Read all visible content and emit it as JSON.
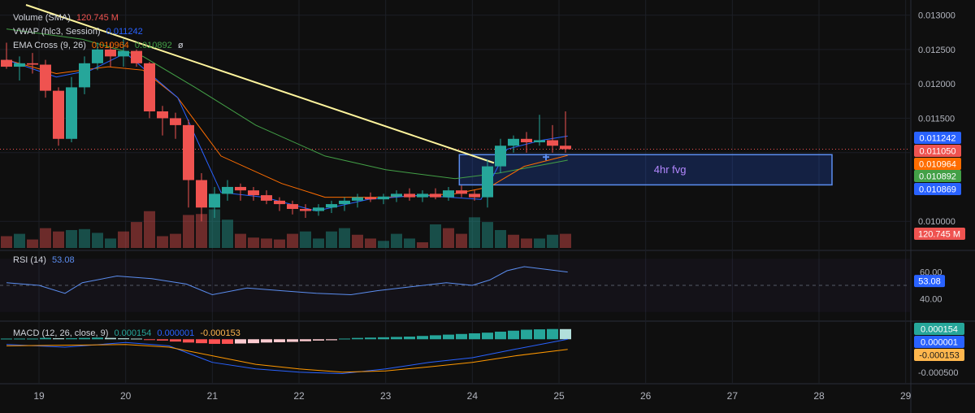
{
  "legend": {
    "volume": {
      "label": "Volume (SMA)",
      "value": "120.745 M"
    },
    "vwap": {
      "label": "VWAP (hlc3, Session)",
      "value": "0.011242"
    },
    "ema": {
      "label": "EMA Cross (9, 26)",
      "value1": "0.010964",
      "value2": "0.010892"
    },
    "rsi": {
      "label": "RSI (14)",
      "value": "53.08"
    },
    "macd": {
      "label": "MACD (12, 26, close, 9)",
      "v1": "0.000154",
      "v2": "0.000001",
      "v3": "-0.000153"
    }
  },
  "annotation": {
    "text": "4hr fvg"
  },
  "colors": {
    "up": "#26a69a",
    "down": "#ef5350",
    "vwap": "#2962ff",
    "ema_fast": "#ff6d00",
    "ema_slow": "#43a047",
    "trend": "#fff59d",
    "rsi": "#5b8def",
    "macd_line": "#2962ff",
    "signal": "#ff9800"
  },
  "price_tags": [
    {
      "value": "0.011242",
      "color": "#2962ff"
    },
    {
      "value": "0.011050",
      "color": "#ef5350"
    },
    {
      "value": "0.010964",
      "color": "#ff6d00"
    },
    {
      "value": "0.010892",
      "color": "#43a047"
    },
    {
      "value": "0.010869",
      "color": "#2962ff"
    }
  ],
  "volume_tag": {
    "value": "120.745 M",
    "color": "#ef5350"
  },
  "rsi_tag": {
    "value": "53.08"
  },
  "macd_tags": [
    {
      "value": "0.000154",
      "color": "#26a69a"
    },
    {
      "value": "0.000001",
      "color": "#2962ff"
    },
    {
      "value": "-0.000153",
      "color": "#ffb74d"
    }
  ],
  "chart_data": {
    "type": "candlestick",
    "price_axis": {
      "ticks": [
        "0.013000",
        "0.012500",
        "0.012000",
        "0.011500",
        "0.011000",
        "0.010000"
      ],
      "range": [
        0.0096,
        0.01315
      ]
    },
    "rsi_axis": {
      "ticks": [
        "60.00",
        "40.00"
      ],
      "range": [
        25,
        75
      ]
    },
    "macd_axis": {
      "ticks": [
        "-0.000500"
      ],
      "range": [
        -0.00065,
        0.00025
      ]
    },
    "x_ticks": [
      "19",
      "20",
      "21",
      "22",
      "23",
      "24",
      "25",
      "26",
      "27",
      "28",
      "29"
    ],
    "x_tick_days": [
      19,
      20,
      21,
      22,
      23,
      24,
      25,
      26,
      27,
      28,
      29
    ],
    "x_range": [
      18.55,
      29.05
    ],
    "candles": [
      [
        18.625,
        0.01235,
        0.0126,
        0.01222,
        0.01225
      ],
      [
        18.775,
        0.01225,
        0.0124,
        0.01205,
        0.0123
      ],
      [
        18.925,
        0.0123,
        0.01245,
        0.01215,
        0.01228
      ],
      [
        19.075,
        0.01228,
        0.01235,
        0.0118,
        0.0119
      ],
      [
        19.225,
        0.0119,
        0.01195,
        0.0111,
        0.0112
      ],
      [
        19.375,
        0.0112,
        0.0121,
        0.01115,
        0.01195
      ],
      [
        19.525,
        0.01195,
        0.0124,
        0.01185,
        0.0123
      ],
      [
        19.675,
        0.0123,
        0.0126,
        0.0122,
        0.0125
      ],
      [
        19.825,
        0.0125,
        0.0126,
        0.01225,
        0.0124
      ],
      [
        19.975,
        0.0124,
        0.01265,
        0.01225,
        0.01248
      ],
      [
        20.125,
        0.01248,
        0.0125,
        0.01225,
        0.0123
      ],
      [
        20.275,
        0.0123,
        0.01232,
        0.0115,
        0.0116
      ],
      [
        20.425,
        0.0116,
        0.01168,
        0.01125,
        0.0115
      ],
      [
        20.575,
        0.0115,
        0.01158,
        0.0112,
        0.0114
      ],
      [
        20.725,
        0.0114,
        0.01148,
        0.0102,
        0.0106
      ],
      [
        20.875,
        0.0106,
        0.0107,
        0.01,
        0.0102
      ],
      [
        21.025,
        0.0102,
        0.0105,
        0.01005,
        0.0104
      ],
      [
        21.175,
        0.0104,
        0.0106,
        0.0103,
        0.0105
      ],
      [
        21.325,
        0.0105,
        0.01055,
        0.0103,
        0.01045
      ],
      [
        21.475,
        0.01045,
        0.0105,
        0.0103,
        0.01038
      ],
      [
        21.625,
        0.01038,
        0.01045,
        0.01025,
        0.0103
      ],
      [
        21.775,
        0.0103,
        0.01035,
        0.01015,
        0.01025
      ],
      [
        21.925,
        0.01025,
        0.0103,
        0.0101,
        0.01018
      ],
      [
        22.075,
        0.01018,
        0.01025,
        0.01005,
        0.01015
      ],
      [
        22.225,
        0.01015,
        0.01025,
        0.01008,
        0.0102
      ],
      [
        22.375,
        0.0102,
        0.0103,
        0.01012,
        0.01025
      ],
      [
        22.525,
        0.01025,
        0.01035,
        0.01015,
        0.0103
      ],
      [
        22.675,
        0.0103,
        0.0104,
        0.0102,
        0.01035
      ],
      [
        22.825,
        0.01035,
        0.01042,
        0.01028,
        0.01032
      ],
      [
        22.975,
        0.01032,
        0.0104,
        0.01025,
        0.01036
      ],
      [
        23.125,
        0.01036,
        0.01045,
        0.01028,
        0.0104
      ],
      [
        23.275,
        0.0104,
        0.01048,
        0.0103,
        0.01035
      ],
      [
        23.425,
        0.01035,
        0.01045,
        0.01028,
        0.0104
      ],
      [
        23.575,
        0.0104,
        0.01048,
        0.01032,
        0.01035
      ],
      [
        23.725,
        0.01035,
        0.0105,
        0.0103,
        0.01045
      ],
      [
        23.875,
        0.01045,
        0.01052,
        0.01035,
        0.0104
      ],
      [
        24.025,
        0.0104,
        0.01045,
        0.0103,
        0.01035
      ],
      [
        24.175,
        0.01035,
        0.0109,
        0.0102,
        0.0108
      ],
      [
        24.325,
        0.0108,
        0.0112,
        0.0107,
        0.0111
      ],
      [
        24.475,
        0.0111,
        0.01125,
        0.011,
        0.0112
      ],
      [
        24.625,
        0.0112,
        0.0113,
        0.011,
        0.01115
      ],
      [
        24.775,
        0.01115,
        0.01155,
        0.0111,
        0.01118
      ],
      [
        24.925,
        0.01118,
        0.0114,
        0.011,
        0.0111
      ],
      [
        25.075,
        0.0111,
        0.0116,
        0.011,
        0.01105
      ]
    ],
    "volume": [
      [
        18.625,
        0.25,
        "down"
      ],
      [
        18.775,
        0.3,
        "up"
      ],
      [
        18.925,
        0.18,
        "down"
      ],
      [
        19.075,
        0.42,
        "down"
      ],
      [
        19.225,
        0.35,
        "down"
      ],
      [
        19.375,
        0.38,
        "up"
      ],
      [
        19.525,
        0.4,
        "up"
      ],
      [
        19.675,
        0.32,
        "up"
      ],
      [
        19.825,
        0.2,
        "up"
      ],
      [
        19.975,
        0.35,
        "down"
      ],
      [
        20.125,
        0.55,
        "down"
      ],
      [
        20.275,
        0.78,
        "down"
      ],
      [
        20.425,
        0.25,
        "down"
      ],
      [
        20.575,
        0.3,
        "down"
      ],
      [
        20.725,
        0.7,
        "down"
      ],
      [
        20.875,
        0.72,
        "down"
      ],
      [
        21.025,
        0.82,
        "up"
      ],
      [
        21.175,
        0.6,
        "up"
      ],
      [
        21.325,
        0.3,
        "down"
      ],
      [
        21.475,
        0.22,
        "down"
      ],
      [
        21.625,
        0.2,
        "down"
      ],
      [
        21.775,
        0.18,
        "down"
      ],
      [
        21.925,
        0.3,
        "down"
      ],
      [
        22.075,
        0.35,
        "up"
      ],
      [
        22.225,
        0.2,
        "up"
      ],
      [
        22.375,
        0.35,
        "up"
      ],
      [
        22.525,
        0.42,
        "up"
      ],
      [
        22.675,
        0.28,
        "down"
      ],
      [
        22.825,
        0.2,
        "down"
      ],
      [
        22.975,
        0.15,
        "up"
      ],
      [
        23.125,
        0.3,
        "up"
      ],
      [
        23.275,
        0.2,
        "up"
      ],
      [
        23.425,
        0.12,
        "down"
      ],
      [
        23.575,
        0.5,
        "up"
      ],
      [
        23.725,
        0.42,
        "down"
      ],
      [
        23.875,
        0.3,
        "down"
      ],
      [
        24.025,
        0.65,
        "up"
      ],
      [
        24.175,
        0.55,
        "up"
      ],
      [
        24.325,
        0.38,
        "up"
      ],
      [
        24.475,
        0.28,
        "down"
      ],
      [
        24.625,
        0.2,
        "down"
      ],
      [
        24.775,
        0.2,
        "up"
      ],
      [
        24.925,
        0.28,
        "up"
      ],
      [
        25.075,
        0.3,
        "down"
      ]
    ],
    "vwap_line": [
      [
        18.625,
        0.01235
      ],
      [
        19.2,
        0.0121
      ],
      [
        19.6,
        0.0122
      ],
      [
        20.0,
        0.01245
      ],
      [
        20.6,
        0.0118
      ],
      [
        21.1,
        0.01042
      ],
      [
        21.6,
        0.01035
      ],
      [
        22.2,
        0.01015
      ],
      [
        22.8,
        0.01032
      ],
      [
        23.4,
        0.01038
      ],
      [
        24.1,
        0.01032
      ],
      [
        24.4,
        0.01105
      ],
      [
        24.8,
        0.01118
      ],
      [
        25.1,
        0.01124
      ]
    ],
    "ema_fast": [
      [
        18.625,
        0.01235
      ],
      [
        19.2,
        0.01215
      ],
      [
        19.8,
        0.01225
      ],
      [
        20.2,
        0.0122
      ],
      [
        20.6,
        0.0118
      ],
      [
        21.1,
        0.01095
      ],
      [
        21.8,
        0.01055
      ],
      [
        22.3,
        0.01035
      ],
      [
        23.0,
        0.01035
      ],
      [
        23.8,
        0.0104
      ],
      [
        24.2,
        0.0105
      ],
      [
        24.6,
        0.0108
      ],
      [
        25.1,
        0.01096
      ]
    ],
    "ema_slow": [
      [
        18.625,
        0.0128
      ],
      [
        19.5,
        0.01265
      ],
      [
        20.2,
        0.0124
      ],
      [
        20.8,
        0.01195
      ],
      [
        21.5,
        0.0114
      ],
      [
        22.3,
        0.01095
      ],
      [
        23.0,
        0.01075
      ],
      [
        23.8,
        0.01062
      ],
      [
        24.3,
        0.0107
      ],
      [
        25.1,
        0.01089
      ]
    ],
    "trendline": [
      [
        18.85,
        0.01315
      ],
      [
        24.25,
        0.01085
      ]
    ],
    "fvg_zone": {
      "x1": 23.85,
      "x2": 28.15,
      "y_top": 0.01097,
      "y_bottom": 0.01053
    },
    "rsi": [
      [
        18.625,
        52
      ],
      [
        19.0,
        50
      ],
      [
        19.3,
        44
      ],
      [
        19.5,
        52
      ],
      [
        19.9,
        57
      ],
      [
        20.3,
        55
      ],
      [
        20.7,
        51
      ],
      [
        21.0,
        43
      ],
      [
        21.4,
        48
      ],
      [
        21.8,
        46
      ],
      [
        22.2,
        44
      ],
      [
        22.6,
        43
      ],
      [
        22.9,
        46
      ],
      [
        23.3,
        49
      ],
      [
        23.7,
        52
      ],
      [
        24.0,
        50
      ],
      [
        24.2,
        54
      ],
      [
        24.4,
        61
      ],
      [
        24.6,
        64
      ],
      [
        25.1,
        60
      ]
    ],
    "macd_hist": [
      1e-05,
      1e-05,
      1e-05,
      2e-05,
      1.5e-05,
      1.5e-05,
      2e-05,
      2.5e-05,
      2e-05,
      1.5e-05,
      1e-05,
      -1e-05,
      -2e-05,
      -3.5e-05,
      -5e-05,
      -6e-05,
      -7e-05,
      -7e-05,
      -6.5e-05,
      -6e-05,
      -5e-05,
      -4.5e-05,
      -4e-05,
      -3e-05,
      -2e-05,
      -1.5e-05,
      1e-05,
      2e-05,
      2.5e-05,
      3e-05,
      3.5e-05,
      4e-05,
      5e-05,
      6e-05,
      7e-05,
      8e-05,
      9e-05,
      0.0001,
      0.000115,
      0.00013,
      0.000145,
      0.00015,
      0.000155,
      0.000154
    ],
    "macd_line": [
      [
        18.625,
        -8e-05
      ],
      [
        19.3,
        -0.00012
      ],
      [
        20.0,
        -5e-05
      ],
      [
        20.5,
        -0.0001
      ],
      [
        21.0,
        -0.00035
      ],
      [
        21.5,
        -0.00045
      ],
      [
        22.0,
        -0.0005
      ],
      [
        22.5,
        -0.00052
      ],
      [
        23.0,
        -0.00045
      ],
      [
        23.5,
        -0.00035
      ],
      [
        24.0,
        -0.00028
      ],
      [
        24.5,
        -0.00015
      ],
      [
        25.1,
        1e-06
      ]
    ],
    "signal_line": [
      [
        18.625,
        -0.0001
      ],
      [
        19.3,
        -9e-05
      ],
      [
        20.0,
        -8e-05
      ],
      [
        20.5,
        -0.00012
      ],
      [
        21.0,
        -0.00025
      ],
      [
        21.5,
        -0.00038
      ],
      [
        22.0,
        -0.00045
      ],
      [
        22.5,
        -0.0005
      ],
      [
        23.0,
        -0.00048
      ],
      [
        23.5,
        -0.00042
      ],
      [
        24.0,
        -0.00035
      ],
      [
        24.5,
        -0.00025
      ],
      [
        25.1,
        -0.000153
      ]
    ]
  }
}
